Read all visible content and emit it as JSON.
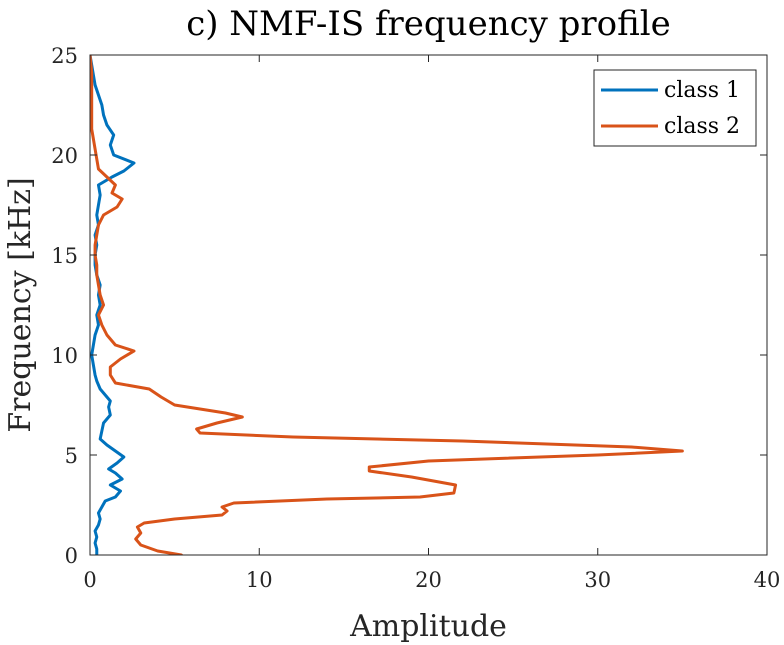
{
  "chart_data": {
    "type": "line",
    "title": "c) NMF-IS frequency profile",
    "xlabel": "Amplitude",
    "ylabel": "Frequency [kHz]",
    "xlim": [
      0,
      40
    ],
    "ylim": [
      0,
      25
    ],
    "xticks": [
      0,
      10,
      20,
      30,
      40
    ],
    "yticks": [
      0,
      5,
      10,
      15,
      20,
      25
    ],
    "grid": false,
    "legend_position": "top-right",
    "series": [
      {
        "name": "class 1",
        "color": "#0072BD",
        "points": [
          [
            0.4,
            0.0
          ],
          [
            0.4,
            0.3
          ],
          [
            0.3,
            0.6
          ],
          [
            0.4,
            0.9
          ],
          [
            0.3,
            1.2
          ],
          [
            0.5,
            1.5
          ],
          [
            0.6,
            1.8
          ],
          [
            0.5,
            2.1
          ],
          [
            0.7,
            2.4
          ],
          [
            0.9,
            2.7
          ],
          [
            1.5,
            2.9
          ],
          [
            1.8,
            3.2
          ],
          [
            1.2,
            3.5
          ],
          [
            1.9,
            3.8
          ],
          [
            1.5,
            4.1
          ],
          [
            1.1,
            4.3
          ],
          [
            1.6,
            4.6
          ],
          [
            2.0,
            4.9
          ],
          [
            1.5,
            5.2
          ],
          [
            1.0,
            5.5
          ],
          [
            0.6,
            5.8
          ],
          [
            0.7,
            6.2
          ],
          [
            0.8,
            6.6
          ],
          [
            1.2,
            7.0
          ],
          [
            1.1,
            7.4
          ],
          [
            1.2,
            7.7
          ],
          [
            0.9,
            8.0
          ],
          [
            0.6,
            8.3
          ],
          [
            0.4,
            8.7
          ],
          [
            0.3,
            9.0
          ],
          [
            0.2,
            9.5
          ],
          [
            0.1,
            10.0
          ],
          [
            0.2,
            10.5
          ],
          [
            0.3,
            11.0
          ],
          [
            0.5,
            11.5
          ],
          [
            0.4,
            12.0
          ],
          [
            0.6,
            12.5
          ],
          [
            0.5,
            13.0
          ],
          [
            0.6,
            13.5
          ],
          [
            0.4,
            14.0
          ],
          [
            0.3,
            14.5
          ],
          [
            0.3,
            15.0
          ],
          [
            0.4,
            15.5
          ],
          [
            0.3,
            16.0
          ],
          [
            0.5,
            16.5
          ],
          [
            0.4,
            17.0
          ],
          [
            0.5,
            17.5
          ],
          [
            0.6,
            18.0
          ],
          [
            0.5,
            18.5
          ],
          [
            1.3,
            18.9
          ],
          [
            2.0,
            19.2
          ],
          [
            2.6,
            19.6
          ],
          [
            1.4,
            20.0
          ],
          [
            1.2,
            20.5
          ],
          [
            1.4,
            21.0
          ],
          [
            1.0,
            21.5
          ],
          [
            0.8,
            22.0
          ],
          [
            0.7,
            22.5
          ],
          [
            0.5,
            23.0
          ],
          [
            0.3,
            23.5
          ],
          [
            0.2,
            24.0
          ],
          [
            0.1,
            24.5
          ],
          [
            0.0,
            25.0
          ]
        ]
      },
      {
        "name": "class 2",
        "color": "#D95319",
        "points": [
          [
            5.4,
            0.0
          ],
          [
            4.0,
            0.2
          ],
          [
            3.0,
            0.5
          ],
          [
            2.7,
            0.8
          ],
          [
            3.0,
            1.1
          ],
          [
            2.8,
            1.4
          ],
          [
            3.2,
            1.6
          ],
          [
            5.0,
            1.8
          ],
          [
            7.8,
            2.0
          ],
          [
            8.1,
            2.2
          ],
          [
            7.8,
            2.4
          ],
          [
            8.5,
            2.6
          ],
          [
            14.0,
            2.8
          ],
          [
            19.5,
            2.9
          ],
          [
            21.5,
            3.1
          ],
          [
            21.6,
            3.5
          ],
          [
            19.0,
            3.9
          ],
          [
            16.5,
            4.2
          ],
          [
            16.5,
            4.4
          ],
          [
            20.0,
            4.7
          ],
          [
            30.0,
            5.0
          ],
          [
            35.0,
            5.2
          ],
          [
            32.0,
            5.4
          ],
          [
            22.0,
            5.7
          ],
          [
            12.0,
            5.9
          ],
          [
            6.5,
            6.1
          ],
          [
            6.3,
            6.3
          ],
          [
            7.5,
            6.6
          ],
          [
            9.0,
            6.9
          ],
          [
            8.0,
            7.1
          ],
          [
            5.0,
            7.5
          ],
          [
            4.2,
            7.9
          ],
          [
            3.5,
            8.3
          ],
          [
            1.5,
            8.6
          ],
          [
            1.2,
            9.0
          ],
          [
            1.2,
            9.4
          ],
          [
            1.8,
            9.8
          ],
          [
            2.6,
            10.2
          ],
          [
            1.5,
            10.5
          ],
          [
            1.0,
            11.0
          ],
          [
            0.7,
            11.5
          ],
          [
            0.5,
            12.0
          ],
          [
            0.8,
            12.5
          ],
          [
            0.6,
            13.0
          ],
          [
            0.5,
            13.5
          ],
          [
            0.4,
            14.0
          ],
          [
            0.4,
            14.5
          ],
          [
            0.3,
            15.0
          ],
          [
            0.3,
            15.5
          ],
          [
            0.4,
            16.0
          ],
          [
            0.5,
            16.5
          ],
          [
            0.8,
            17.0
          ],
          [
            1.6,
            17.4
          ],
          [
            1.9,
            17.8
          ],
          [
            1.3,
            18.1
          ],
          [
            1.5,
            18.5
          ],
          [
            1.0,
            18.9
          ],
          [
            0.5,
            19.3
          ],
          [
            0.4,
            19.8
          ],
          [
            0.3,
            20.3
          ],
          [
            0.2,
            20.8
          ],
          [
            0.1,
            21.3
          ],
          [
            0.1,
            22.0
          ],
          [
            0.1,
            22.7
          ],
          [
            0.1,
            23.4
          ],
          [
            0.1,
            24.1
          ],
          [
            0.0,
            25.0
          ]
        ]
      }
    ]
  }
}
